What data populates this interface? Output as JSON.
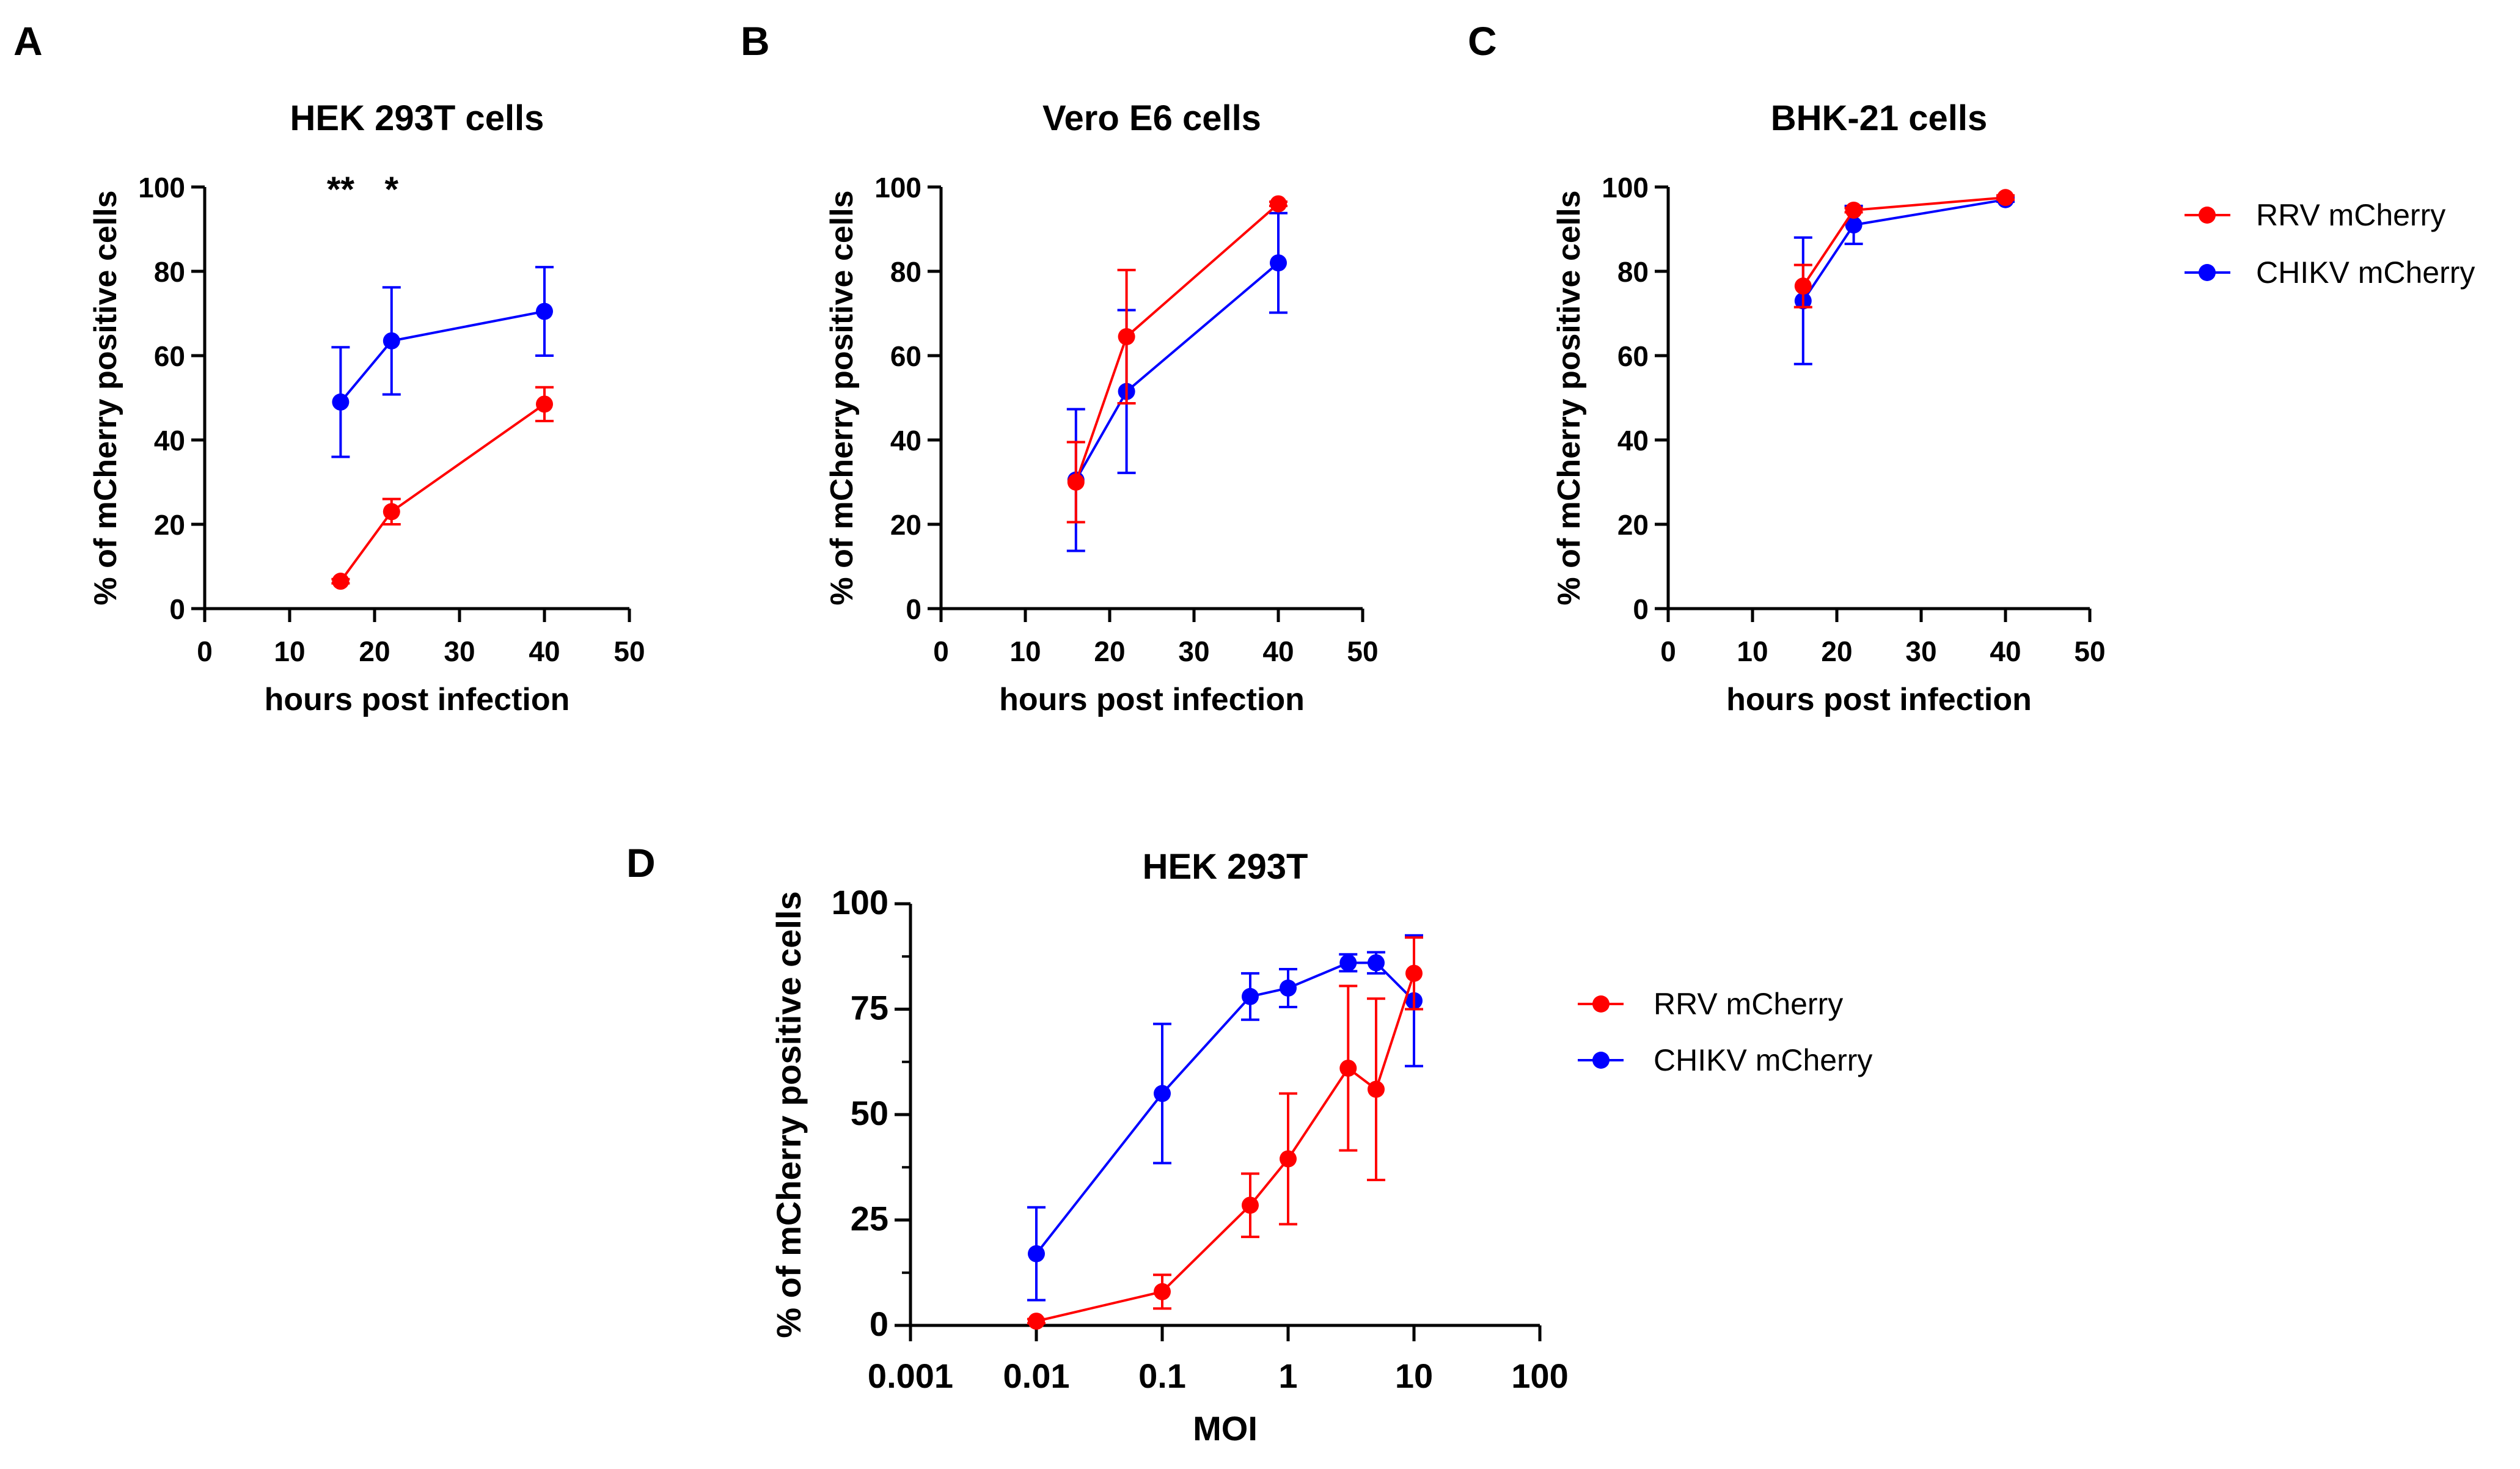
{
  "chart_data": [
    {
      "panel": "A",
      "type": "line",
      "title": "HEK 293T cells",
      "xlabel": "hours post infection",
      "ylabel": "% of mCherry positive cells",
      "xlim": [
        0,
        50
      ],
      "ylim": [
        0,
        100
      ],
      "xticks": [
        "0",
        "10",
        "20",
        "30",
        "40",
        "50"
      ],
      "yticks": [
        "0",
        "20",
        "40",
        "60",
        "80",
        "100"
      ],
      "annotations": [
        {
          "text": "**",
          "x": 16
        },
        {
          "text": "*",
          "x": 22
        }
      ],
      "series": [
        {
          "name": "RRV mCherry",
          "color": "#ff0000",
          "x": [
            16,
            22,
            40
          ],
          "values": [
            6.5,
            23,
            48.5
          ],
          "errors": [
            0.5,
            3,
            4
          ]
        },
        {
          "name": "CHIKV mCherry",
          "color": "#0000ff",
          "x": [
            16,
            22,
            40
          ],
          "values": [
            49,
            63.5,
            70.5
          ],
          "errors": [
            13,
            12.7,
            10.5
          ]
        }
      ]
    },
    {
      "panel": "B",
      "type": "line",
      "title": "Vero E6 cells",
      "xlabel": "hours post infection",
      "ylabel": "% of mCherry positive cells",
      "xlim": [
        0,
        50
      ],
      "ylim": [
        0,
        100
      ],
      "xticks": [
        "0",
        "10",
        "20",
        "30",
        "40",
        "50"
      ],
      "yticks": [
        "0",
        "20",
        "40",
        "60",
        "80",
        "100"
      ],
      "series": [
        {
          "name": "RRV mCherry",
          "color": "#ff0000",
          "x": [
            16,
            22,
            40
          ],
          "values": [
            30,
            64.5,
            96
          ],
          "errors": [
            9.5,
            15.8,
            0.5
          ]
        },
        {
          "name": "CHIKV mCherry",
          "color": "#0000ff",
          "x": [
            16,
            22,
            40
          ],
          "values": [
            30.5,
            51.5,
            82
          ],
          "errors": [
            16.8,
            19.3,
            11.8
          ]
        }
      ]
    },
    {
      "panel": "C",
      "type": "line",
      "title": "BHK-21 cells",
      "xlabel": "hours post infection",
      "ylabel": "% of mCherry positive cells",
      "xlim": [
        0,
        50
      ],
      "ylim": [
        0,
        100
      ],
      "xticks": [
        "0",
        "10",
        "20",
        "30",
        "40",
        "50"
      ],
      "yticks": [
        "0",
        "20",
        "40",
        "60",
        "80",
        "100"
      ],
      "series": [
        {
          "name": "RRV mCherry",
          "color": "#ff0000",
          "x": [
            16,
            22,
            40
          ],
          "values": [
            76.5,
            94.5,
            97.5
          ],
          "errors": [
            5,
            0.5,
            0.5
          ]
        },
        {
          "name": "CHIKV mCherry",
          "color": "#0000ff",
          "x": [
            16,
            22,
            40
          ],
          "values": [
            73,
            91,
            97
          ],
          "errors": [
            15,
            4.5,
            0.5
          ]
        }
      ]
    },
    {
      "panel": "D",
      "type": "line",
      "xscale": "log",
      "title": "HEK 293T",
      "xlabel": "MOI",
      "ylabel": "% of mCherry positive cells",
      "xlim": [
        0.001,
        100
      ],
      "ylim": [
        0,
        100
      ],
      "xticks": [
        "0.001",
        "0.01",
        "0.1",
        "1",
        "10",
        "100"
      ],
      "yticks": [
        "0",
        "25",
        "50",
        "75",
        "100"
      ],
      "series": [
        {
          "name": "RRV mCherry",
          "color": "#ff0000",
          "x": [
            0.01,
            0.1,
            0.5,
            1,
            3,
            5,
            10
          ],
          "values": [
            1,
            8,
            28.5,
            39.5,
            61,
            56,
            83.5
          ],
          "errors": [
            0.5,
            4,
            7.5,
            15.5,
            19.5,
            21.5,
            8.5
          ]
        },
        {
          "name": "CHIKV mCherry",
          "color": "#0000ff",
          "x": [
            0.01,
            0.1,
            0.5,
            1,
            3,
            5,
            10
          ],
          "values": [
            17,
            55,
            78,
            80,
            86,
            86,
            77
          ],
          "errors": [
            11,
            16.5,
            5.5,
            4.5,
            2,
            2.5,
            15.5
          ]
        }
      ]
    }
  ],
  "legends": {
    "top": [
      "RRV mCherry",
      "CHIKV mCherry"
    ],
    "bottom": [
      "RRV mCherry",
      "CHIKV mCherry"
    ]
  }
}
